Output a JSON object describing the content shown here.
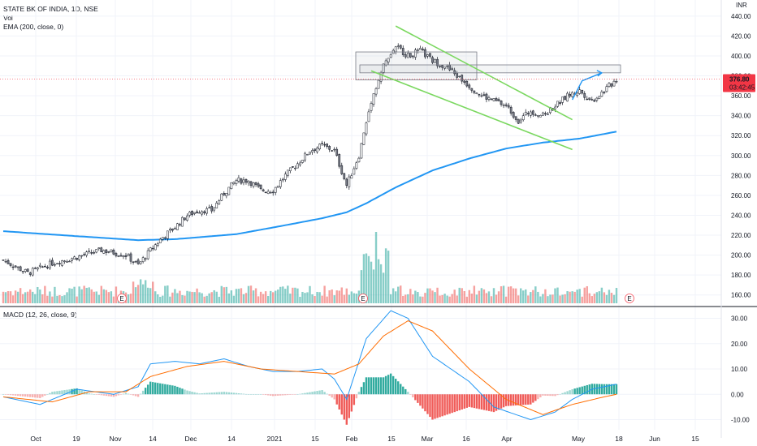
{
  "legend": {
    "symbol": "STATE BK OF INDIA, 1D, NSE",
    "vol": "Vol",
    "ema": "EMA (200, close, 0)",
    "macd": "MACD (12, 26, close, 9)"
  },
  "currency": "INR",
  "last_price": "376.80",
  "countdown": "03:42:45",
  "earnings_marker": "E",
  "colors": {
    "up": "#787b86",
    "down": "#5d606b",
    "ema": "#2196f3",
    "vol_up": "#26a69a",
    "vol_down": "#ef5350",
    "macd_line": "#2196f3",
    "signal_line": "#ff6d00",
    "channel": "#7bd860",
    "arrow": "#2196f3",
    "price_label": "#f23645"
  },
  "chart_data": [
    {
      "type": "candlestick",
      "title": "",
      "y_ticks": [
        "440.00",
        "420.00",
        "400.00",
        "380.00",
        "360.00",
        "340.00",
        "320.00",
        "300.00",
        "280.00",
        "260.00",
        "240.00",
        "220.00",
        "200.00",
        "180.00",
        "160.00"
      ],
      "x_ticks": [
        "Oct",
        "19",
        "Nov",
        "14",
        "Dec",
        "14",
        "2021",
        "15",
        "Feb",
        "15",
        "Mar",
        "16",
        "Apr",
        "May",
        "18",
        "Jun",
        "15"
      ],
      "ylim": [
        150,
        448
      ],
      "close_series_anchors": [
        [
          0,
          195
        ],
        [
          10,
          182
        ],
        [
          20,
          192
        ],
        [
          30,
          198
        ],
        [
          40,
          205
        ],
        [
          50,
          200
        ],
        [
          55,
          190
        ],
        [
          60,
          205
        ],
        [
          65,
          218
        ],
        [
          70,
          228
        ],
        [
          75,
          240
        ],
        [
          80,
          245
        ],
        [
          85,
          245
        ],
        [
          90,
          262
        ],
        [
          95,
          275
        ],
        [
          100,
          275
        ],
        [
          105,
          265
        ],
        [
          110,
          265
        ],
        [
          115,
          280
        ],
        [
          120,
          292
        ],
        [
          125,
          305
        ],
        [
          130,
          310
        ],
        [
          135,
          305
        ],
        [
          140,
          270
        ],
        [
          145,
          300
        ],
        [
          150,
          355
        ],
        [
          155,
          390
        ],
        [
          160,
          410
        ],
        [
          165,
          400
        ],
        [
          170,
          405
        ],
        [
          175,
          395
        ],
        [
          180,
          390
        ],
        [
          185,
          380
        ],
        [
          190,
          370
        ],
        [
          195,
          360
        ],
        [
          200,
          355
        ],
        [
          205,
          350
        ],
        [
          210,
          335
        ],
        [
          215,
          345
        ],
        [
          220,
          340
        ],
        [
          225,
          350
        ],
        [
          230,
          360
        ],
        [
          235,
          365
        ],
        [
          240,
          355
        ],
        [
          245,
          365
        ],
        [
          250,
          376.8
        ]
      ],
      "ema_200_anchors": [
        [
          0,
          224
        ],
        [
          30,
          219
        ],
        [
          55,
          215
        ],
        [
          70,
          216
        ],
        [
          95,
          221
        ],
        [
          115,
          230
        ],
        [
          130,
          237
        ],
        [
          140,
          243
        ],
        [
          148,
          252
        ],
        [
          160,
          268
        ],
        [
          175,
          285
        ],
        [
          190,
          297
        ],
        [
          205,
          307
        ],
        [
          220,
          313
        ],
        [
          235,
          317
        ],
        [
          250,
          324
        ]
      ],
      "volume_note": "Volume histogram in bottom of price pane, colored by candle direction",
      "resistance_boxes": [
        [
          376,
          404
        ],
        [
          383,
          391
        ]
      ],
      "channel_upper": [
        [
          160,
          430
        ],
        [
          232,
          336
        ]
      ],
      "channel_lower": [
        [
          150,
          385
        ],
        [
          232,
          306
        ]
      ],
      "projection_arrow": [
        [
          232,
          356
        ],
        [
          236,
          375
        ],
        [
          244,
          383
        ]
      ]
    },
    {
      "type": "line",
      "title": "MACD (12, 26, close, 9)",
      "y_ticks": [
        "30.00",
        "20.00",
        "10.00",
        "0.00",
        "-10.00"
      ],
      "ylim": [
        -14,
        34
      ],
      "macd_anchors": [
        [
          0,
          -1
        ],
        [
          15,
          -4
        ],
        [
          30,
          2
        ],
        [
          45,
          0
        ],
        [
          55,
          3
        ],
        [
          60,
          12
        ],
        [
          70,
          13
        ],
        [
          80,
          12
        ],
        [
          90,
          14
        ],
        [
          100,
          11
        ],
        [
          110,
          9
        ],
        [
          120,
          9
        ],
        [
          130,
          10
        ],
        [
          135,
          6
        ],
        [
          140,
          -2
        ],
        [
          148,
          22
        ],
        [
          158,
          33
        ],
        [
          165,
          30
        ],
        [
          175,
          15
        ],
        [
          190,
          5
        ],
        [
          200,
          -5
        ],
        [
          215,
          -10
        ],
        [
          225,
          -7
        ],
        [
          232,
          -2
        ],
        [
          240,
          2
        ],
        [
          250,
          4
        ]
      ],
      "signal_anchors": [
        [
          0,
          -1
        ],
        [
          20,
          -3
        ],
        [
          35,
          1
        ],
        [
          50,
          1
        ],
        [
          60,
          7
        ],
        [
          75,
          11
        ],
        [
          90,
          13
        ],
        [
          105,
          10
        ],
        [
          120,
          9
        ],
        [
          135,
          8
        ],
        [
          145,
          12
        ],
        [
          155,
          23
        ],
        [
          165,
          29
        ],
        [
          175,
          25
        ],
        [
          190,
          10
        ],
        [
          205,
          -2
        ],
        [
          220,
          -8
        ],
        [
          232,
          -4
        ],
        [
          245,
          -1
        ],
        [
          250,
          0
        ]
      ]
    }
  ]
}
